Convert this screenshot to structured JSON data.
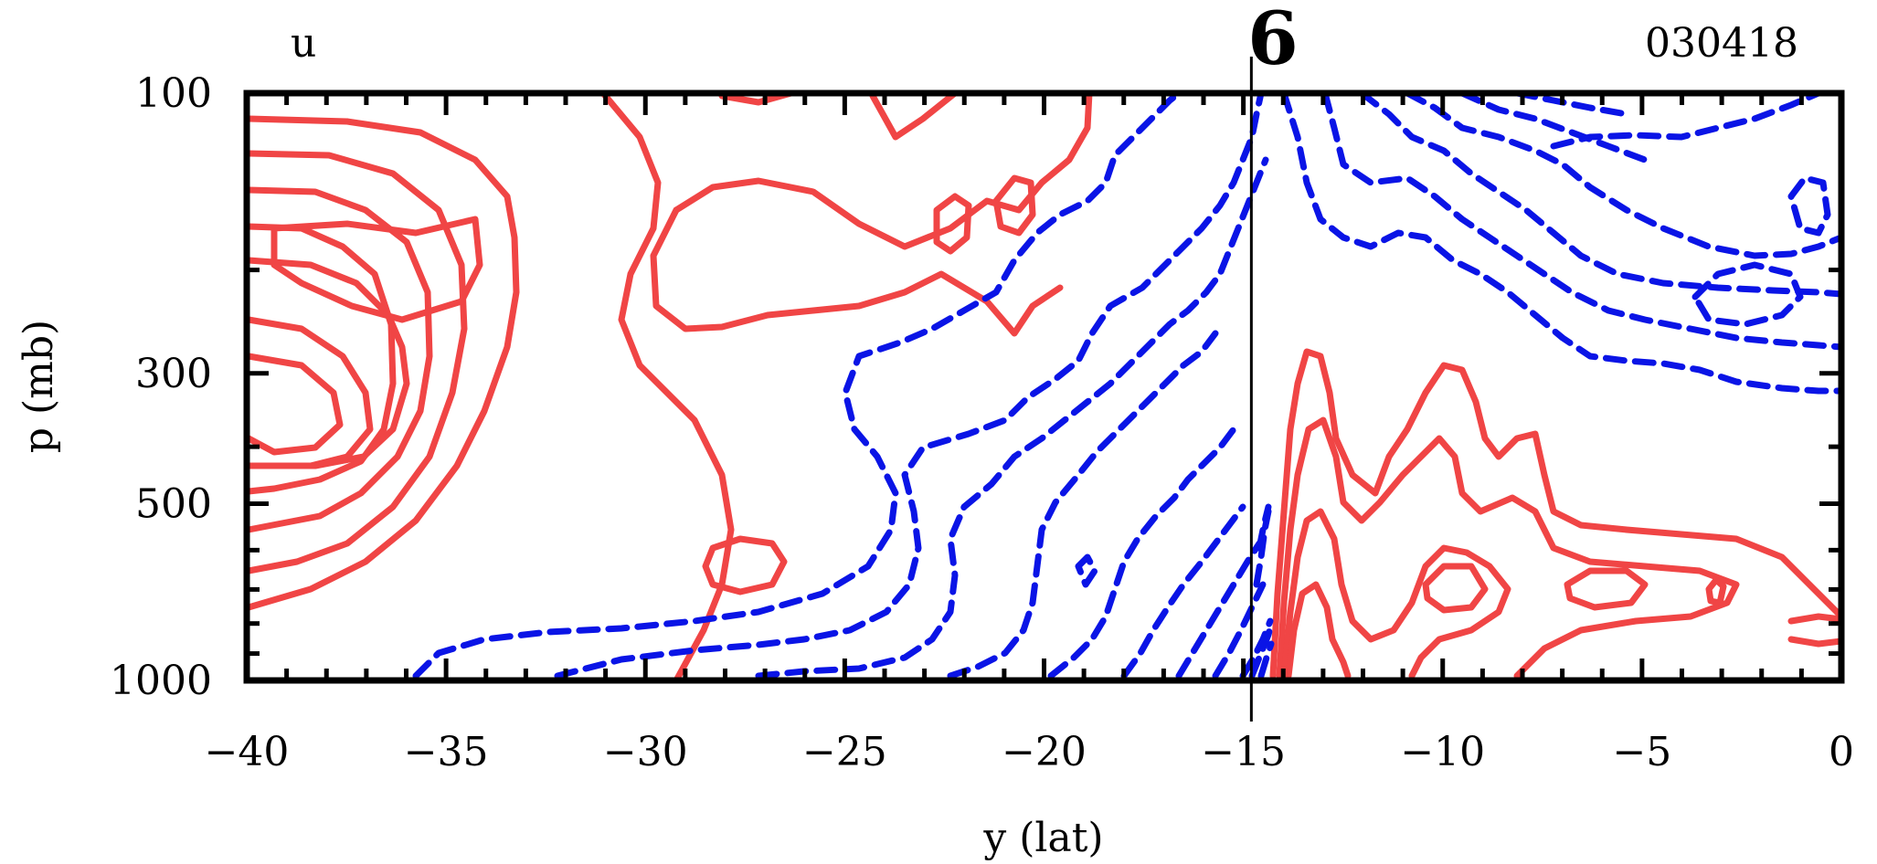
{
  "chart_data": {
    "type": "contour",
    "variable_label": "u",
    "date_label": "030418",
    "marker_label": "6",
    "marker_x": -14.8,
    "xlabel": "y (lat)",
    "ylabel": "p (mb)",
    "xlim": [
      -40,
      0
    ],
    "ylim": [
      1000,
      100
    ],
    "x_ticks": [
      -40,
      -35,
      -30,
      -25,
      -20,
      -15,
      -10,
      -5,
      0
    ],
    "x_tick_labels": [
      "−40",
      "−35",
      "−30",
      "−25",
      "−20",
      "−15",
      "−10",
      "−5",
      "0"
    ],
    "y_ticks": [
      100,
      300,
      500,
      1000
    ],
    "y_tick_labels": [
      "100",
      "300",
      "500",
      "1000"
    ],
    "positive_color": "#f04545",
    "negative_color": "#0a14e6",
    "positive_style": "solid",
    "negative_style": "dashed"
  }
}
